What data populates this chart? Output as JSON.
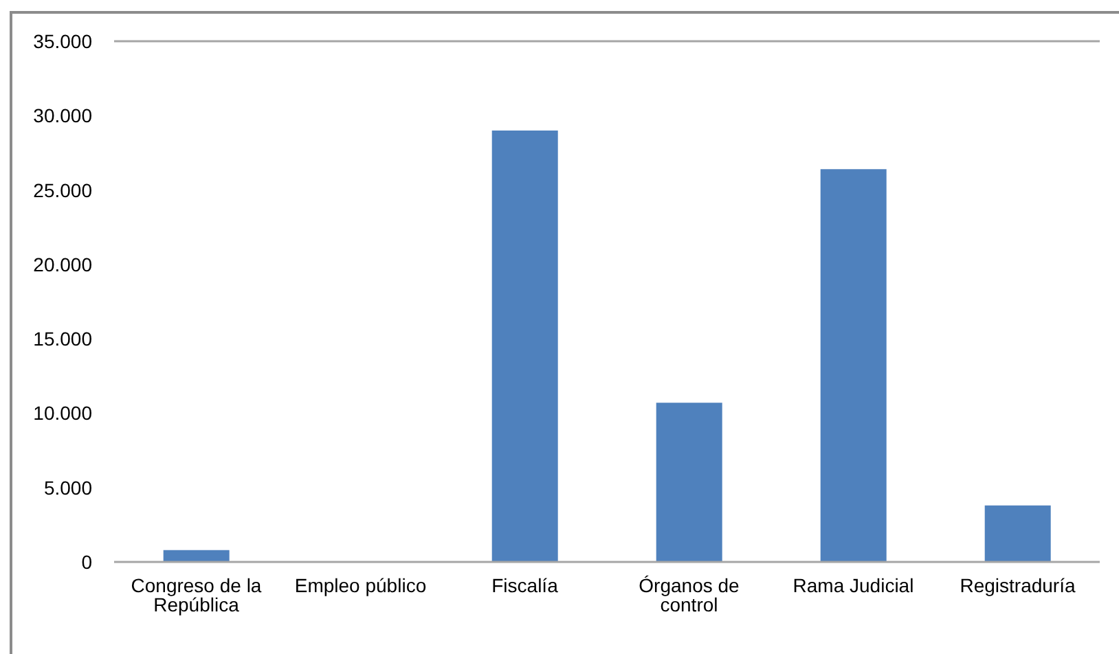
{
  "chart_data": {
    "type": "bar",
    "categories": [
      "Congreso de la República",
      "Empleo público",
      "Fiscalía",
      "Órganos de control",
      "Rama Judicial",
      "Registraduría"
    ],
    "values": [
      800,
      0,
      29000,
      10700,
      26400,
      3800
    ],
    "color": "#4f81bd",
    "ylim": [
      0,
      35000
    ],
    "yticks": [
      {
        "value": 0,
        "label": "0"
      },
      {
        "value": 5000,
        "label": "5.000"
      },
      {
        "value": 10000,
        "label": "10.000"
      },
      {
        "value": 15000,
        "label": "15.000"
      },
      {
        "value": 20000,
        "label": "20.000"
      },
      {
        "value": 25000,
        "label": "25.000"
      },
      {
        "value": 30000,
        "label": "30.000"
      },
      {
        "value": 35000,
        "label": "35.000"
      }
    ],
    "ref_lines": [
      {
        "axis": "y",
        "value": 35000,
        "color": "#a6a6a6"
      }
    ],
    "grid": false,
    "legend": false
  }
}
